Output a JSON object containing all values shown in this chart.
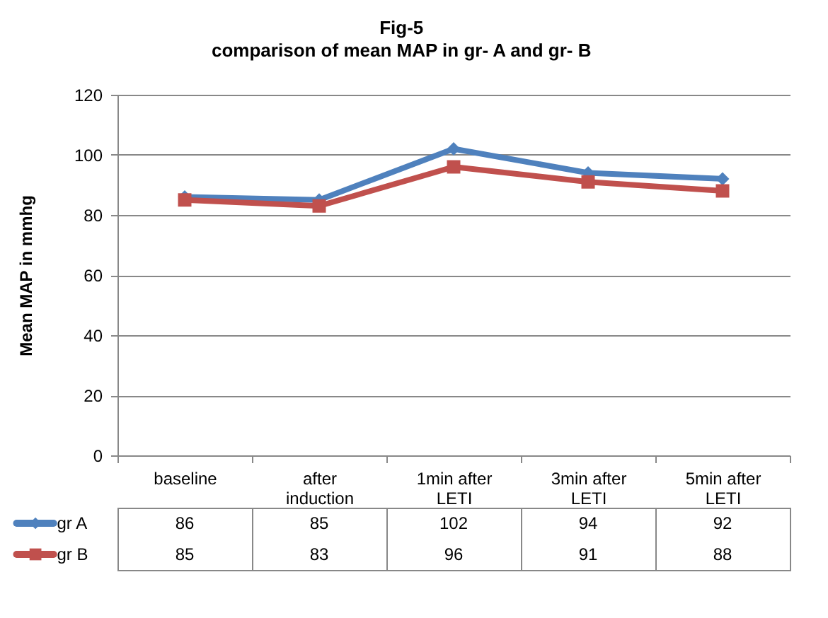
{
  "chart_data": {
    "type": "line",
    "title": "Fig-5",
    "subtitle": "comparison of mean MAP in gr- A and gr- B",
    "ylabel": "Mean MAP in mmhg",
    "categories": [
      "baseline",
      "after induction",
      "1min after LETI",
      "3min after LETI",
      "5min after LETI"
    ],
    "series": [
      {
        "name": "gr A",
        "color": "#4f81bd",
        "marker": "diamond",
        "values": [
          86,
          85,
          102,
          94,
          92
        ]
      },
      {
        "name": "gr B",
        "color": "#c0504d",
        "marker": "square",
        "values": [
          85,
          83,
          96,
          91,
          88
        ]
      }
    ],
    "ylim": [
      0,
      120
    ],
    "yticks": [
      0,
      20,
      40,
      60,
      80,
      100,
      120
    ],
    "grid": "y",
    "legend": "bottom",
    "data_labels": true
  }
}
